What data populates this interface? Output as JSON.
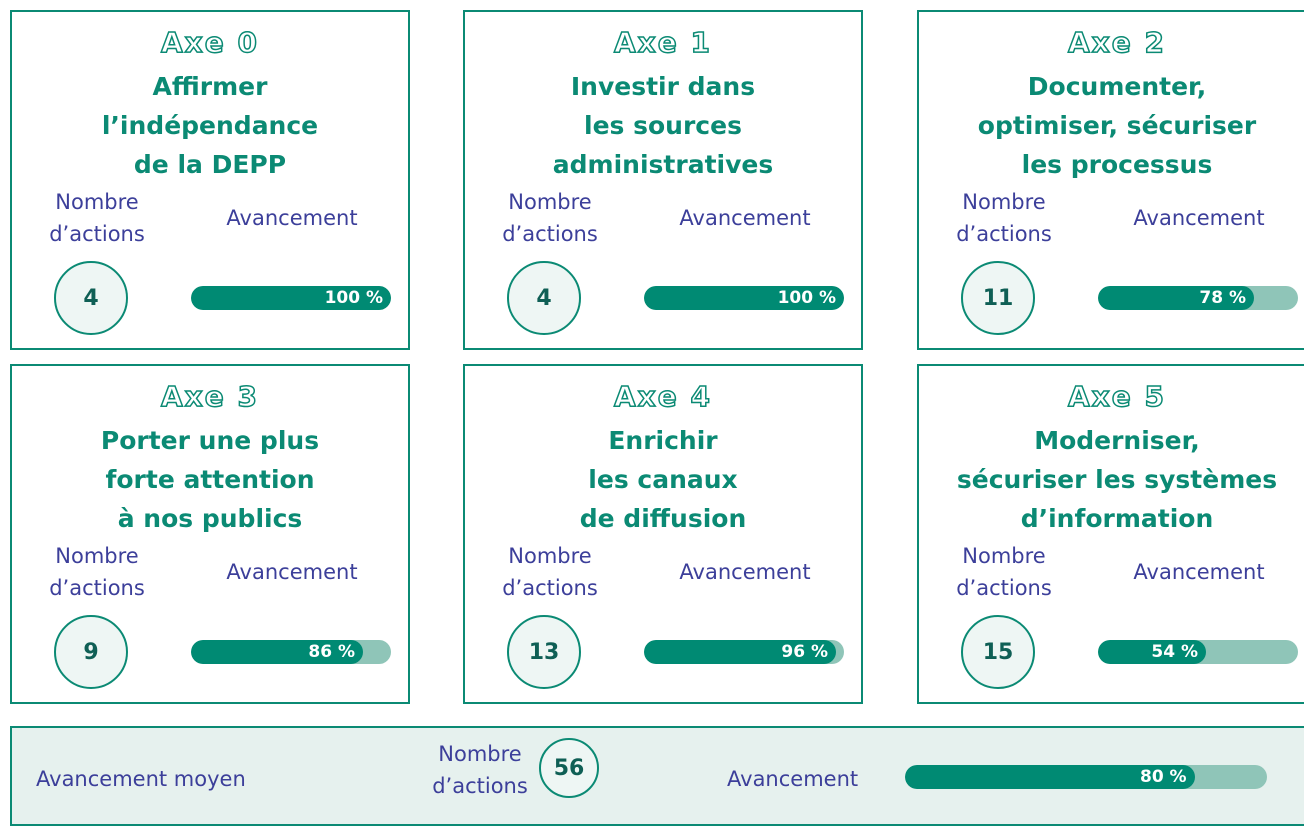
{
  "cards": [
    {
      "axe": "Axe 0",
      "title_lines": [
        "Affirmer",
        "l’indépendance",
        "de la DEPP"
      ],
      "count_label": "Nombre d’actions",
      "count": 4,
      "progress_heading": "Avancement",
      "progress": 100,
      "progress_label": "100 %"
    },
    {
      "axe": "Axe 1",
      "title_lines": [
        "Investir dans",
        "les sources",
        "administratives"
      ],
      "count_label": "Nombre d’actions",
      "count": 4,
      "progress_heading": "Avancement",
      "progress": 100,
      "progress_label": "100 %"
    },
    {
      "axe": "Axe 2",
      "title_lines": [
        "Documenter,",
        "optimiser, sécuriser",
        "les processus"
      ],
      "count_label": "Nombre d’actions",
      "count": 11,
      "progress_heading": "Avancement",
      "progress": 78,
      "progress_label": "78 %"
    },
    {
      "axe": "Axe 3",
      "title_lines": [
        "Porter une plus",
        "forte attention",
        "à nos publics"
      ],
      "count_label": "Nombre d’actions",
      "count": 9,
      "progress_heading": "Avancement",
      "progress": 86,
      "progress_label": "86 %"
    },
    {
      "axe": "Axe 4",
      "title_lines": [
        "Enrichir",
        "les canaux",
        "de diffusion"
      ],
      "count_label": "Nombre d’actions",
      "count": 13,
      "progress_heading": "Avancement",
      "progress": 96,
      "progress_label": "96 %"
    },
    {
      "axe": "Axe 5",
      "title_lines": [
        "Moderniser,",
        "sécuriser les systèmes",
        "d’information"
      ],
      "count_label": "Nombre d’actions",
      "count": 15,
      "progress_heading": "Avancement",
      "progress": 54,
      "progress_label": "54 %"
    }
  ],
  "summary": {
    "title": "Avancement moyen",
    "count_label": "Nombre d’actions",
    "count": 56,
    "progress_heading": "Avancement",
    "progress": 80,
    "progress_label": "80 %"
  }
}
